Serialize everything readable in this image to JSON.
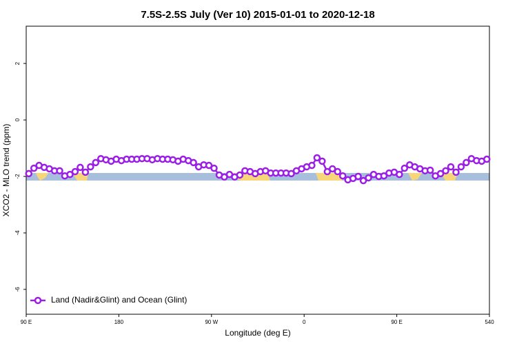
{
  "chart_data": {
    "type": "line",
    "title": "7.5S-2.5S July (Ver 10)   2015-01-01 to 2020-12-18",
    "x_label": "Longitude (deg E)",
    "y_label": "XCO2 - MLO trend (ppm)",
    "xlim": [
      90,
      540
    ],
    "xticks": [
      {
        "value": 90,
        "label": "90 E"
      },
      180,
      {
        "value": 270,
        "label": "90 W"
      },
      {
        "value": 360,
        "label": "0"
      },
      {
        "value": 450,
        "label": "90 E"
      },
      540
    ],
    "ylim": [
      -6.88,
      3.32
    ],
    "yticks": [
      2,
      0,
      -2,
      -4,
      -6
    ],
    "legend_position": "lower-left",
    "x": [
      92.5,
      97.5,
      102.5,
      107.5,
      112.5,
      117.5,
      122.5,
      127.5,
      132.5,
      137.5,
      142.5,
      147.5,
      152.5,
      157.5,
      162.5,
      167.5,
      172.5,
      177.5,
      182.5,
      187.5,
      192.5,
      197.5,
      202.5,
      207.5,
      212.5,
      217.5,
      222.5,
      227.5,
      232.5,
      237.5,
      242.5,
      247.5,
      252.5,
      257.5,
      262.5,
      267.5,
      272.5,
      277.5,
      282.5,
      287.5,
      292.5,
      297.5,
      302.5,
      307.5,
      312.5,
      317.5,
      322.5,
      327.5,
      332.5,
      337.5,
      342.5,
      347.5,
      352.5,
      357.5,
      362.5,
      367.5,
      372.5,
      377.5,
      382.5,
      387.5,
      392.5,
      397.5,
      402.5,
      407.5,
      412.5,
      417.5,
      422.5,
      427.5,
      432.5,
      437.5,
      442.5,
      447.5,
      452.5,
      457.5,
      462.5,
      467.5,
      472.5,
      477.5,
      482.5,
      487.5,
      492.5,
      497.5,
      502.5,
      507.5,
      512.5,
      517.5,
      522.5,
      527.5,
      532.5,
      537.5
    ],
    "series": [
      {
        "name": "Land (Nadir&Glint) and Ocean (Glint)",
        "color": "#9b1ee6",
        "values": [
          -1.9,
          -1.71,
          -1.61,
          -1.68,
          -1.73,
          -1.8,
          -1.8,
          -1.98,
          -1.93,
          -1.83,
          -1.68,
          -1.85,
          -1.66,
          -1.51,
          -1.37,
          -1.41,
          -1.46,
          -1.39,
          -1.44,
          -1.39,
          -1.39,
          -1.39,
          -1.37,
          -1.37,
          -1.41,
          -1.37,
          -1.39,
          -1.39,
          -1.41,
          -1.46,
          -1.39,
          -1.44,
          -1.51,
          -1.66,
          -1.59,
          -1.61,
          -1.71,
          -1.95,
          -2.02,
          -1.93,
          -2.02,
          -1.95,
          -1.8,
          -1.83,
          -1.9,
          -1.83,
          -1.8,
          -1.88,
          -1.88,
          -1.88,
          -1.88,
          -1.9,
          -1.8,
          -1.73,
          -1.66,
          -1.61,
          -1.34,
          -1.46,
          -1.83,
          -1.73,
          -1.83,
          -1.98,
          -2.12,
          -2.07,
          -2.0,
          -2.15,
          -2.05,
          -1.93,
          -2.0,
          -1.98,
          -1.88,
          -1.85,
          -1.93,
          -1.71,
          -1.59,
          -1.66,
          -1.73,
          -1.8,
          -1.78,
          -1.98,
          -1.9,
          -1.8,
          -1.66,
          -1.85,
          -1.66,
          -1.51,
          -1.37,
          -1.44,
          -1.46,
          -1.39
        ]
      }
    ]
  }
}
